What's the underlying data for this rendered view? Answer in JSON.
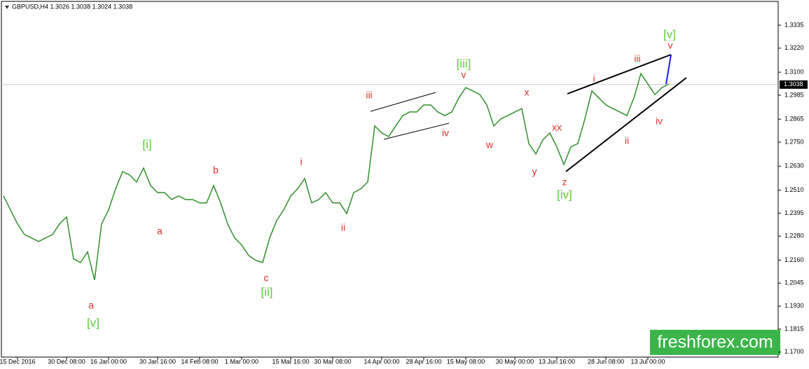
{
  "chart_data": {
    "type": "line",
    "title": "GBPUSD,H4  1.3026 1.3038 1.3024 1.3038",
    "categories": [
      null,
      null,
      "15 Dec 2016",
      null,
      null,
      null,
      null,
      null,
      null,
      "30 Dec 08:00",
      null,
      null,
      null,
      null,
      null,
      "16 Jan 00:00",
      null,
      null,
      null,
      null,
      null,
      null,
      "30 Jan 16:00",
      null,
      null,
      null,
      null,
      null,
      "14 Feb 08:00",
      null,
      null,
      null,
      null,
      null,
      "1 Mar 00:00",
      null,
      null,
      null,
      null,
      null,
      null,
      "15 Mar 16:00",
      null,
      null,
      null,
      null,
      null,
      "30 Mar 08:00",
      null,
      null,
      null,
      null,
      null,
      null,
      "14 Apr 00:00",
      null,
      null,
      null,
      null,
      null,
      "28 Apr 16:00",
      null,
      null,
      null,
      null,
      null,
      "15 May 08:00",
      null,
      null,
      null,
      null,
      null,
      null,
      "30 May 00:00",
      null,
      null,
      null,
      null,
      null,
      "13 Jun 16:00",
      null,
      null,
      null,
      null,
      null,
      null,
      "28 Jun 08:00",
      null,
      null,
      null,
      null,
      null,
      "13 Jul 00:00",
      null,
      null,
      null
    ],
    "series": [
      {
        "name": "GBPUSD",
        "color": "#2f8f2a",
        "values": [
          1.2481,
          1.2411,
          1.2341,
          1.2288,
          1.2271,
          1.2253,
          1.2271,
          1.2288,
          1.2341,
          1.2376,
          1.2166,
          1.2148,
          1.2201,
          1.2061,
          1.2341,
          1.2411,
          1.2516,
          1.2603,
          1.2586,
          1.2551,
          1.2621,
          1.2533,
          1.2498,
          1.2498,
          1.2463,
          1.2481,
          1.2463,
          1.2463,
          1.2446,
          1.2446,
          1.2533,
          1.2446,
          1.2341,
          1.2271,
          1.2236,
          1.2183,
          1.2159,
          1.2148,
          1.2271,
          1.2358,
          1.2411,
          1.2481,
          1.2516,
          1.2568,
          1.2446,
          1.2463,
          1.2498,
          1.2446,
          1.2446,
          1.2393,
          1.2498,
          1.2516,
          1.2551,
          1.2831,
          1.2796,
          1.2778,
          1.2831,
          1.2883,
          1.2901,
          1.2901,
          1.2936,
          1.2936,
          1.2901,
          1.2883,
          1.2901,
          1.2971,
          1.3023,
          1.3006,
          1.2988,
          1.2936,
          1.2831,
          1.2866,
          1.2883,
          1.2901,
          1.2918,
          1.2743,
          1.2691,
          1.2761,
          1.2796,
          1.2726,
          1.2638,
          1.2726,
          1.2743,
          1.2866,
          1.3006,
          1.2971,
          1.2936,
          1.2918,
          1.2901,
          1.2883,
          1.2971,
          1.3093,
          1.3041,
          1.2988,
          1.3023,
          1.3041
        ]
      }
    ],
    "ylim": [
      1.1675,
      1.3454
    ],
    "yticks": [
      {
        "value": 1.17,
        "label": "1.1700"
      },
      {
        "value": 1.1815,
        "label": "1.1815"
      },
      {
        "value": 1.193,
        "label": "1.1930"
      },
      {
        "value": 1.2045,
        "label": "1.2045"
      },
      {
        "value": 1.216,
        "label": "1.2160"
      },
      {
        "value": 1.228,
        "label": "1.2280"
      },
      {
        "value": 1.2395,
        "label": "1.2395"
      },
      {
        "value": 1.251,
        "label": "1.2510"
      },
      {
        "value": 1.263,
        "label": "1.2630"
      },
      {
        "value": 1.275,
        "label": "1.2750"
      },
      {
        "value": 1.2865,
        "label": "1.2865"
      },
      {
        "value": 1.2985,
        "label": "1.2985"
      },
      {
        "value": 1.31,
        "label": "1.3100"
      },
      {
        "value": 1.322,
        "label": "1.3220"
      },
      {
        "value": 1.3335,
        "label": "1.3335"
      }
    ],
    "price_line": {
      "value": 1.3038,
      "label": "1.3038"
    },
    "grid": false,
    "annotations": [
      {
        "text": "a",
        "color": "#e0302a"
      },
      {
        "text": "b",
        "color": "#e0302a"
      },
      {
        "text": "a",
        "color": "#e0302a"
      },
      {
        "text": "c",
        "color": "#e0302a"
      },
      {
        "text": "i",
        "color": "#e0302a"
      },
      {
        "text": "ii",
        "color": "#e0302a"
      },
      {
        "text": "iii",
        "color": "#e0302a"
      },
      {
        "text": "iv",
        "color": "#e0302a"
      },
      {
        "text": "v",
        "color": "#e0302a"
      },
      {
        "text": "w",
        "color": "#e0302a"
      },
      {
        "text": "x",
        "color": "#e0302a"
      },
      {
        "text": "y",
        "color": "#e0302a"
      },
      {
        "text": "xx",
        "color": "#e0302a"
      },
      {
        "text": "z",
        "color": "#e0302a"
      },
      {
        "text": "i",
        "color": "#e0302a"
      },
      {
        "text": "iii",
        "color": "#e0302a"
      },
      {
        "text": "ii",
        "color": "#e0302a"
      },
      {
        "text": "iv",
        "color": "#e0302a"
      },
      {
        "text": "v",
        "color": "#e0302a"
      },
      {
        "text": "[v]",
        "color": "#5ecb3a"
      },
      {
        "text": "[i]",
        "color": "#5ecb3a"
      },
      {
        "text": "[ii]",
        "color": "#5ecb3a"
      },
      {
        "text": "[iii]",
        "color": "#5ecb3a"
      },
      {
        "text": "[iv]",
        "color": "#5ecb3a"
      },
      {
        "text": "[v]",
        "color": "#5ecb3a"
      }
    ],
    "watermark": "freshforex.com"
  }
}
